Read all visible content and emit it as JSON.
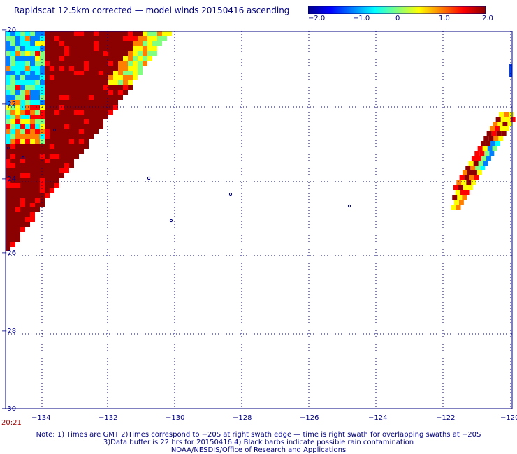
{
  "title": "Rapidscat 12.5km corrected — model winds 20150416 ascending",
  "colorbar": {
    "min": -2.0,
    "max": 2.0,
    "tick_labels": [
      "−2.0",
      "−1.0",
      "0",
      "1.0",
      "2.0"
    ],
    "colors": [
      "#00008b",
      "#0000ff",
      "#0080ff",
      "#00ffff",
      "#80ff80",
      "#ffff00",
      "#ff8000",
      "#ff0000",
      "#8b0000"
    ]
  },
  "map": {
    "lon_range": [
      -135.0,
      -120.0
    ],
    "lat_range": [
      -30.0,
      -20.0
    ],
    "lon_tick_labels": [
      "−134",
      "−132",
      "−130",
      "−128",
      "−126",
      "−124",
      "−122",
      "−120"
    ],
    "lat_tick_labels": [
      "−20",
      "−22",
      "−24",
      "−26",
      "−28",
      "−30"
    ],
    "grid": "dotted",
    "colors": {
      "axis": "#000080",
      "grid": "#000080",
      "high": "#8b0000"
    }
  },
  "time_label": "20:21",
  "notes": [
    "Note: 1) Times are GMT 2)Times correspond to −20S at right swath edge — time is right swath for overlapping swaths at −20S",
    "3)Data buffer is 22 hrs for 20150416 4) Black barbs indicate possible rain contamination",
    "NOAA/NESDIS/Office of Research and Applications"
  ]
}
